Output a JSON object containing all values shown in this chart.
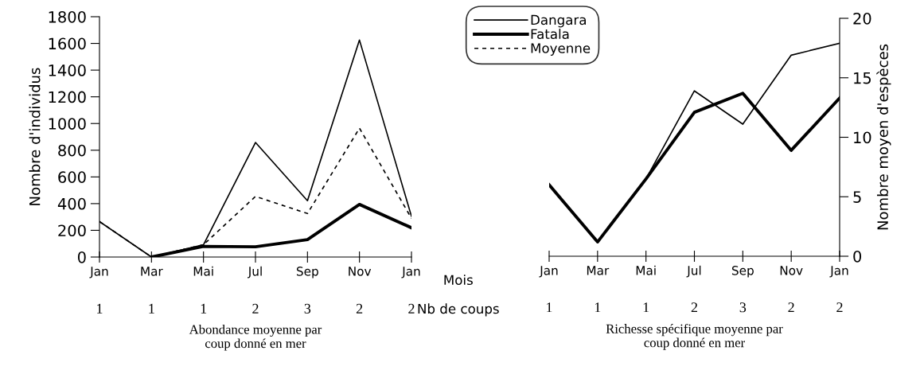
{
  "chart_data": [
    {
      "type": "line",
      "categories": [
        "Jan",
        "Mar",
        "Mai",
        "Jul",
        "Sep",
        "Nov",
        "Jan"
      ],
      "ylabel": "Nombre d'individus",
      "xlabel": "Abondance moyenne par\ncoup donné en mer",
      "ylim": [
        0,
        1800
      ],
      "yticks": [
        0,
        200,
        400,
        600,
        800,
        1000,
        1200,
        1400,
        1600,
        1800
      ],
      "grid": false,
      "legend": "top right",
      "series": [
        {
          "name": "Dangara",
          "color": "#000000",
          "line_style": "solid",
          "values": [
            266,
            0,
            92,
            858,
            422,
            1625,
            305
          ]
        },
        {
          "name": "Fatala",
          "color": "#000000",
          "line_style": "solid",
          "values": [
            null,
            0,
            80,
            77,
            130,
            394,
            219
          ]
        },
        {
          "name": "Moyenne",
          "color": "#000000",
          "line_style": "dashed",
          "values": [
            266,
            0,
            92,
            454,
            326,
            965,
            290
          ]
        }
      ],
      "annotations": [
        "1",
        "1",
        "1",
        "2",
        "3",
        "2",
        "2",
        "Mois",
        "Nb de coups"
      ]
    },
    {
      "type": "line",
      "categories": [
        "Jan",
        "Mar",
        "Mai",
        "Jul",
        "Sep",
        "Nov",
        "Jan"
      ],
      "y2label": "Nombre moyen d'espèces",
      "xlabel": "Richesse spécifique moyenne par\ncoup donné en mer",
      "y2lim": [
        0,
        20
      ],
      "y2ticks": [
        0,
        5,
        10,
        15,
        20
      ],
      "grid": false,
      "legend": false,
      "series": [
        {
          "color": "#000000",
          "line_style": "solid",
          "axis": "y2",
          "values": [
            6.0,
            1.2,
            6.5,
            13.9,
            11.1,
            16.9,
            17.9
          ]
        },
        {
          "color": "#000000",
          "line_style": "solid",
          "axis": "y2",
          "values": [
            6.0,
            1.2,
            6.5,
            12.1,
            13.7,
            8.9,
            13.3
          ]
        }
      ],
      "annotations": [
        "1",
        "1",
        "1",
        "2",
        "3",
        "2",
        "2"
      ]
    }
  ]
}
